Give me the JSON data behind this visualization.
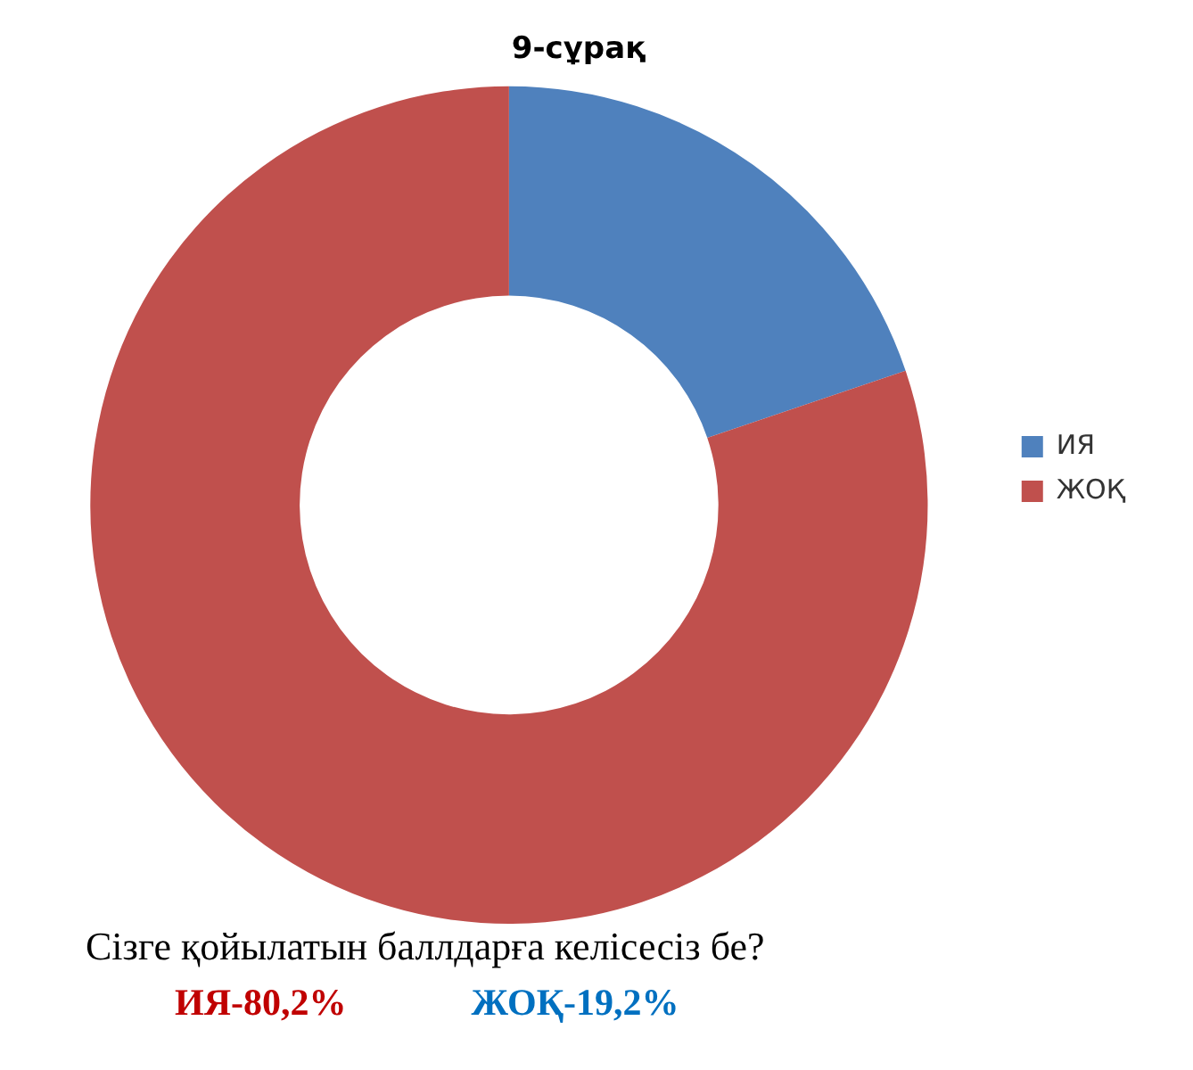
{
  "chart_data": {
    "type": "donut",
    "title": "9-сұрақ",
    "categories": [
      "ИЯ",
      "ЖОҚ"
    ],
    "values": [
      19.8,
      80.2
    ],
    "colors": [
      "#4f81bd",
      "#c0504d"
    ],
    "legend": "right",
    "annotations": [
      "Сізге қойылатын баллдарға келісесіз бе?",
      "ИЯ-80,2%",
      "ЖОҚ-19,2%"
    ]
  }
}
